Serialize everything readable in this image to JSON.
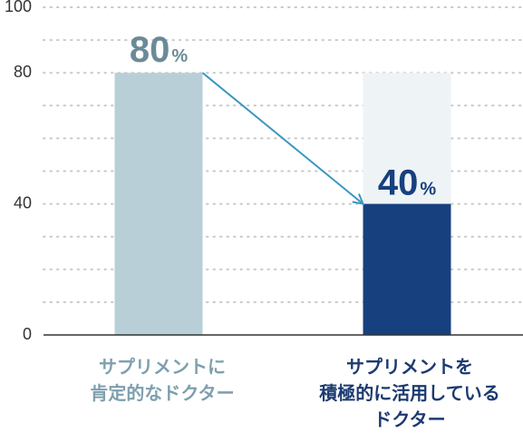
{
  "chart_data": {
    "type": "bar",
    "categories": [
      [
        "サプリメントに",
        "肯定的なドクター"
      ],
      [
        "サプリメントを",
        "積極的に活用している",
        "ドクター"
      ]
    ],
    "values": [
      80,
      40
    ],
    "value_labels": [
      {
        "number": "80",
        "unit": "%"
      },
      {
        "number": "40",
        "unit": "%"
      }
    ],
    "y_ticks": [
      "100",
      "80",
      "40",
      "0"
    ],
    "ylim": [
      0,
      100
    ],
    "grid": "dotted horizontal",
    "bar_colors": [
      "#b9cfd7",
      "#17407e"
    ],
    "ghost_bar_value": 80,
    "ghost_bar_color": "#eef3f6",
    "label_colors": [
      "#6b8a98",
      "#17407e"
    ],
    "category_colors": [
      "#7d9fae",
      "#1b3a70"
    ],
    "arrow_color": "#3a98c1"
  }
}
